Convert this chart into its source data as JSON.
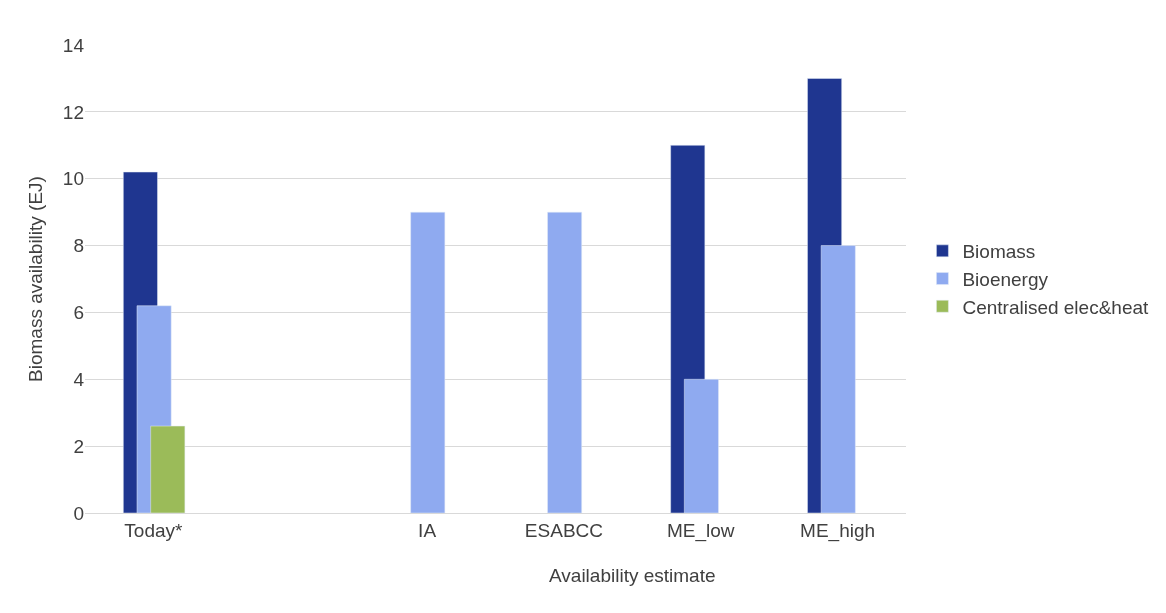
{
  "chart_data": {
    "type": "bar",
    "ylabel": "Biomass availability (EJ)",
    "xlabel": "Availability estimate",
    "categories": [
      "Today*",
      null,
      "IA",
      "ESABCC",
      "ME_low",
      "ME_high"
    ],
    "series": [
      {
        "name": "Biomass",
        "color": "#1f3690",
        "values": [
          10.2,
          null,
          null,
          null,
          11,
          13
        ]
      },
      {
        "name": "Bioenergy",
        "color": "#8faaf0",
        "values": [
          6.2,
          null,
          9,
          9,
          4,
          8
        ]
      },
      {
        "name": "Centralised elec&heat",
        "color": "#9bbb59",
        "values": [
          2.6,
          null,
          null,
          null,
          null,
          null
        ]
      }
    ],
    "ylim": [
      0,
      14
    ],
    "yticks": [
      0,
      2,
      4,
      6,
      8,
      10,
      12,
      14
    ],
    "grid": "y",
    "legend": "right"
  }
}
